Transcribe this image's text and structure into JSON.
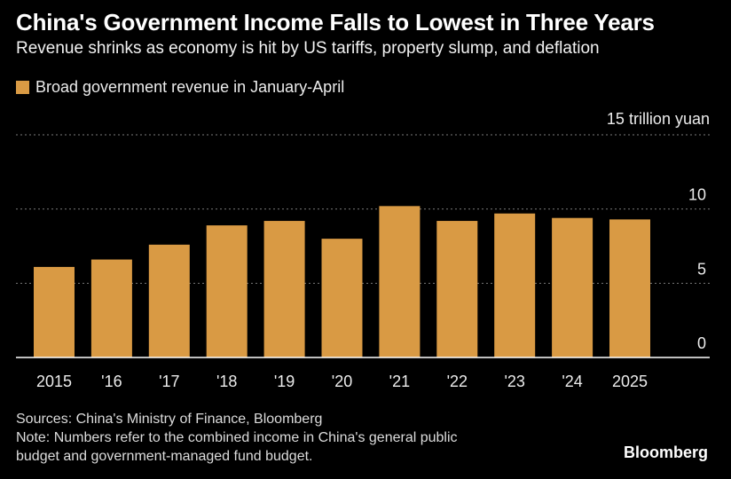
{
  "title": "China's Government Income Falls to Lowest in Three Years",
  "subtitle": "Revenue shrinks as economy is hit by US tariffs, property slump, and deflation",
  "colors": {
    "background": "#000000",
    "bar": "#D99A44",
    "grid": "#7a7a7a",
    "axis": "#ffffff"
  },
  "chart_data": {
    "type": "bar",
    "categories": [
      "2015",
      "'16",
      "'17",
      "'18",
      "'19",
      "'20",
      "'21",
      "'22",
      "'23",
      "'24",
      "2025"
    ],
    "series": [
      {
        "name": "Broad government revenue in January-April",
        "values": [
          6.1,
          6.6,
          7.6,
          8.9,
          9.2,
          8.0,
          10.2,
          9.2,
          9.7,
          9.4,
          9.3
        ]
      }
    ],
    "y_ticks": [
      "0",
      "5",
      "10",
      "15 trillion yuan"
    ],
    "y_tick_values": [
      0,
      5,
      10,
      15
    ],
    "ylim": [
      0,
      15
    ],
    "grid": true,
    "y_axis_side": "right",
    "legend_position": "top-left"
  },
  "footer": {
    "sources": "Sources: China's Ministry of Finance, Bloomberg",
    "note_line1": "Note: Numbers refer to the combined income in China's general public",
    "note_line2": "budget and government-managed fund budget."
  },
  "brand": "Bloomberg"
}
